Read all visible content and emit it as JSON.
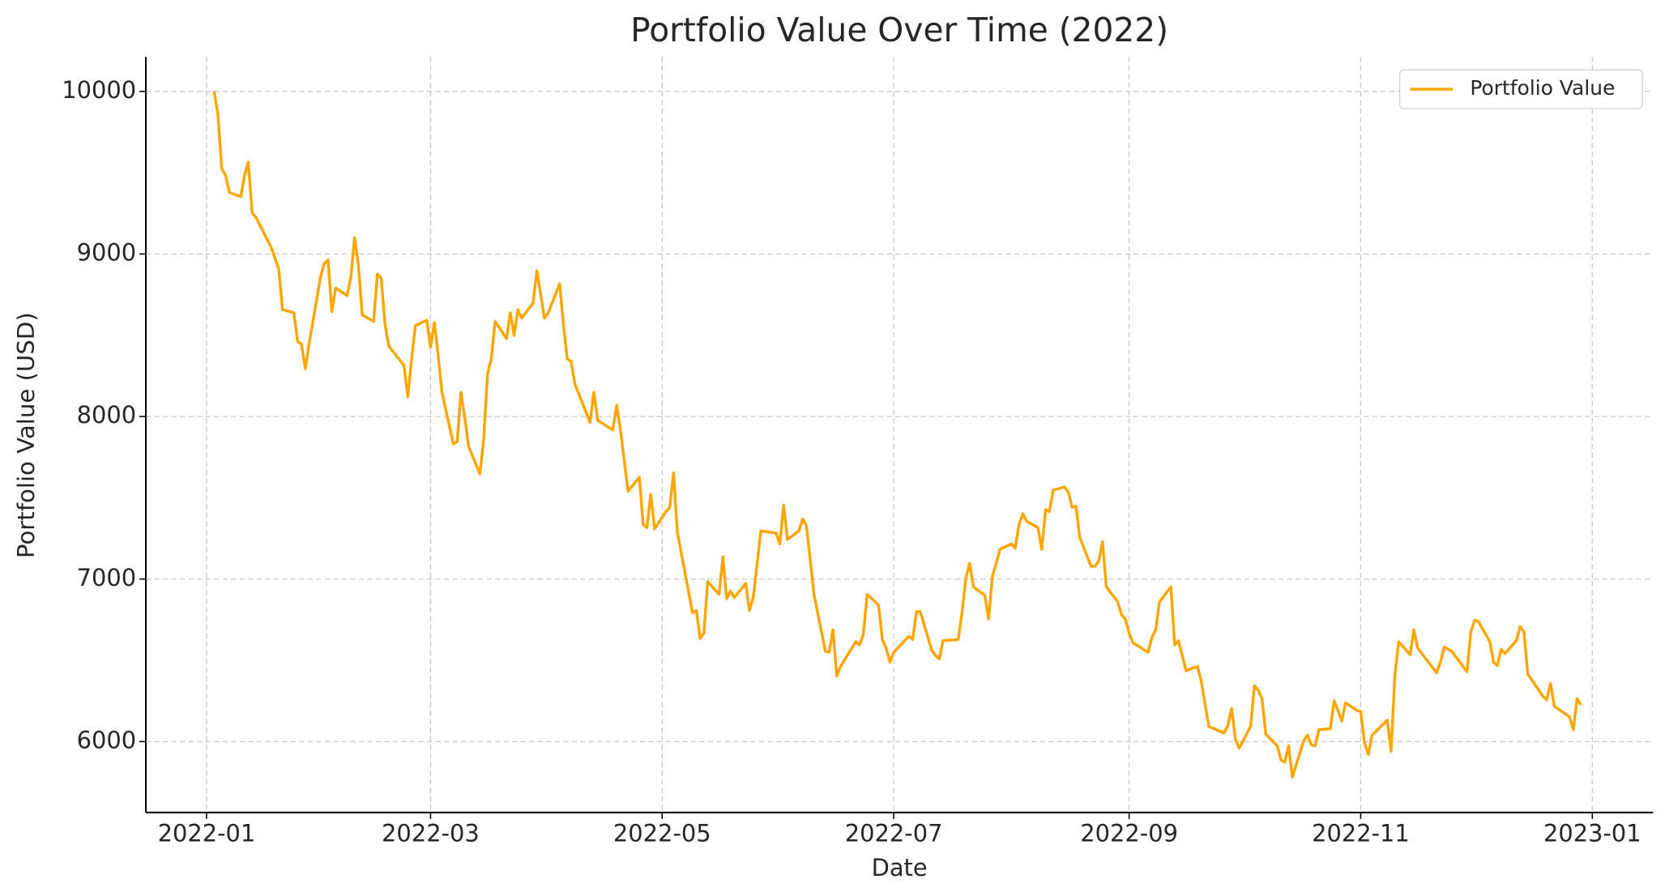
{
  "chart_data": {
    "type": "line",
    "title": "Portfolio Value Over Time (2022)",
    "xlabel": "Date",
    "ylabel": "Portfolio Value (USD)",
    "x": [
      "2022-01-03",
      "2022-01-04",
      "2022-01-05",
      "2022-01-06",
      "2022-01-07",
      "2022-01-10",
      "2022-01-11",
      "2022-01-12",
      "2022-01-13",
      "2022-01-14",
      "2022-01-18",
      "2022-01-20",
      "2022-01-21",
      "2022-01-24",
      "2022-01-25",
      "2022-01-26",
      "2022-01-27",
      "2022-01-28",
      "2022-01-31",
      "2022-02-01",
      "2022-02-02",
      "2022-02-03",
      "2022-02-04",
      "2022-02-07",
      "2022-02-08",
      "2022-02-09",
      "2022-02-10",
      "2022-02-11",
      "2022-02-14",
      "2022-02-15",
      "2022-02-16",
      "2022-02-17",
      "2022-02-18",
      "2022-02-22",
      "2022-02-23",
      "2022-02-24",
      "2022-02-25",
      "2022-02-28",
      "2022-03-01",
      "2022-03-02",
      "2022-03-03",
      "2022-03-04",
      "2022-03-07",
      "2022-03-08",
      "2022-03-09",
      "2022-03-10",
      "2022-03-11",
      "2022-03-14",
      "2022-03-15",
      "2022-03-16",
      "2022-03-17",
      "2022-03-18",
      "2022-03-21",
      "2022-03-22",
      "2022-03-23",
      "2022-03-24",
      "2022-03-25",
      "2022-03-28",
      "2022-03-29",
      "2022-03-30",
      "2022-03-31",
      "2022-04-01",
      "2022-04-04",
      "2022-04-05",
      "2022-04-06",
      "2022-04-07",
      "2022-04-08",
      "2022-04-12",
      "2022-04-13",
      "2022-04-14",
      "2022-04-18",
      "2022-04-19",
      "2022-04-20",
      "2022-04-22",
      "2022-04-25",
      "2022-04-26",
      "2022-04-27",
      "2022-04-28",
      "2022-04-29",
      "2022-05-02",
      "2022-05-03",
      "2022-05-04",
      "2022-05-05",
      "2022-05-09",
      "2022-05-10",
      "2022-05-11",
      "2022-05-12",
      "2022-05-13",
      "2022-05-16",
      "2022-05-17",
      "2022-05-18",
      "2022-05-19",
      "2022-05-20",
      "2022-05-23",
      "2022-05-24",
      "2022-05-25",
      "2022-05-27",
      "2022-05-31",
      "2022-06-01",
      "2022-06-02",
      "2022-06-03",
      "2022-06-06",
      "2022-06-07",
      "2022-06-08",
      "2022-06-10",
      "2022-06-13",
      "2022-06-14",
      "2022-06-15",
      "2022-06-16",
      "2022-06-17",
      "2022-06-21",
      "2022-06-22",
      "2022-06-23",
      "2022-06-24",
      "2022-06-27",
      "2022-06-28",
      "2022-06-29",
      "2022-06-30",
      "2022-07-01",
      "2022-07-05",
      "2022-07-06",
      "2022-07-07",
      "2022-07-08",
      "2022-07-11",
      "2022-07-12",
      "2022-07-13",
      "2022-07-14",
      "2022-07-18",
      "2022-07-19",
      "2022-07-20",
      "2022-07-21",
      "2022-07-22",
      "2022-07-25",
      "2022-07-26",
      "2022-07-27",
      "2022-07-28",
      "2022-07-29",
      "2022-08-01",
      "2022-08-02",
      "2022-08-03",
      "2022-08-04",
      "2022-08-05",
      "2022-08-08",
      "2022-08-09",
      "2022-08-10",
      "2022-08-11",
      "2022-08-12",
      "2022-08-15",
      "2022-08-16",
      "2022-08-17",
      "2022-08-18",
      "2022-08-19",
      "2022-08-22",
      "2022-08-23",
      "2022-08-24",
      "2022-08-25",
      "2022-08-26",
      "2022-08-29",
      "2022-08-30",
      "2022-08-31",
      "2022-09-01",
      "2022-09-02",
      "2022-09-06",
      "2022-09-07",
      "2022-09-08",
      "2022-09-09",
      "2022-09-12",
      "2022-09-13",
      "2022-09-14",
      "2022-09-15",
      "2022-09-16",
      "2022-09-19",
      "2022-09-20",
      "2022-09-22",
      "2022-09-26",
      "2022-09-27",
      "2022-09-28",
      "2022-09-29",
      "2022-09-30",
      "2022-10-03",
      "2022-10-04",
      "2022-10-05",
      "2022-10-06",
      "2022-10-07",
      "2022-10-10",
      "2022-10-11",
      "2022-10-12",
      "2022-10-13",
      "2022-10-14",
      "2022-10-17",
      "2022-10-18",
      "2022-10-19",
      "2022-10-20",
      "2022-10-21",
      "2022-10-24",
      "2022-10-25",
      "2022-10-26",
      "2022-10-27",
      "2022-10-28",
      "2022-10-31",
      "2022-11-01",
      "2022-11-02",
      "2022-11-03",
      "2022-11-04",
      "2022-11-08",
      "2022-11-09",
      "2022-11-10",
      "2022-11-11",
      "2022-11-14",
      "2022-11-15",
      "2022-11-16",
      "2022-11-21",
      "2022-11-22",
      "2022-11-23",
      "2022-11-25",
      "2022-11-29",
      "2022-11-30",
      "2022-12-01",
      "2022-12-02",
      "2022-12-05",
      "2022-12-06",
      "2022-12-07",
      "2022-12-08",
      "2022-12-09",
      "2022-12-12",
      "2022-12-13",
      "2022-12-14",
      "2022-12-15",
      "2022-12-19",
      "2022-12-20",
      "2022-12-21",
      "2022-12-22",
      "2022-12-26",
      "2022-12-27",
      "2022-12-28",
      "2022-12-29"
    ],
    "series": [
      {
        "name": "Portfolio Value",
        "color": "#ffa500",
        "values": [
          10000,
          9855,
          9524,
          9484,
          9379,
          9352,
          9484,
          9564,
          9253,
          9226,
          9041,
          8909,
          8658,
          8638,
          8460,
          8446,
          8294,
          8446,
          8856,
          8942,
          8962,
          8645,
          8790,
          8744,
          8856,
          9101,
          8929,
          8625,
          8585,
          8876,
          8850,
          8565,
          8433,
          8314,
          8122,
          8354,
          8559,
          8592,
          8426,
          8579,
          8374,
          8149,
          7831,
          7845,
          8149,
          7997,
          7818,
          7646,
          7864,
          8261,
          8354,
          8585,
          8479,
          8638,
          8499,
          8658,
          8605,
          8698,
          8896,
          8750,
          8605,
          8638,
          8817,
          8565,
          8354,
          8340,
          8202,
          7964,
          8149,
          7977,
          7917,
          8069,
          7924,
          7540,
          7626,
          7336,
          7316,
          7521,
          7309,
          7415,
          7441,
          7653,
          7289,
          6793,
          6807,
          6635,
          6668,
          6985,
          6906,
          7137,
          6879,
          6926,
          6886,
          6972,
          6807,
          6886,
          7296,
          7283,
          7216,
          7455,
          7243,
          7296,
          7369,
          7329,
          6906,
          6555,
          6549,
          6688,
          6403,
          6463,
          6615,
          6595,
          6661,
          6906,
          6840,
          6628,
          6575,
          6489,
          6549,
          6648,
          6628,
          6800,
          6800,
          6562,
          6529,
          6509,
          6621,
          6628,
          6800,
          7005,
          7097,
          6952,
          6899,
          6754,
          7018,
          7097,
          7183,
          7216,
          7190,
          7336,
          7402,
          7355,
          7316,
          7183,
          7428,
          7415,
          7547,
          7567,
          7534,
          7441,
          7448,
          7256,
          7078,
          7078,
          7111,
          7230,
          6952,
          6860,
          6780,
          6754,
          6668,
          6608,
          6549,
          6641,
          6688,
          6860,
          6952,
          6595,
          6621,
          6529,
          6436,
          6463,
          6370,
          6093,
          6053,
          6099,
          6205,
          6013,
          5960,
          6093,
          6344,
          6317,
          6264,
          6046,
          5974,
          5888,
          5874,
          5974,
          5782,
          6007,
          6040,
          5980,
          5974,
          6073,
          6079,
          6251,
          6192,
          6126,
          6238,
          6192,
          6185,
          5993,
          5921,
          6040,
          6132,
          5941,
          6410,
          6615,
          6535,
          6688,
          6575,
          6423,
          6489,
          6582,
          6555,
          6430,
          6674,
          6747,
          6740,
          6615,
          6489,
          6469,
          6568,
          6542,
          6621,
          6707,
          6674,
          6416,
          6278,
          6258,
          6357,
          6218,
          6152,
          6073,
          6264,
          6225
        ]
      }
    ],
    "xlim": [
      "2021-12-16",
      "2023-01-17"
    ],
    "xticks": [
      {
        "value": "2022-01-01",
        "label": "2022-01"
      },
      {
        "value": "2022-03-01",
        "label": "2022-03"
      },
      {
        "value": "2022-05-01",
        "label": "2022-05"
      },
      {
        "value": "2022-07-01",
        "label": "2022-07"
      },
      {
        "value": "2022-09-01",
        "label": "2022-09"
      },
      {
        "value": "2022-11-01",
        "label": "2022-11"
      },
      {
        "value": "2023-01-01",
        "label": "2023-01"
      }
    ],
    "ylim": [
      5564,
      10212
    ],
    "yticks": [
      6000,
      7000,
      8000,
      9000,
      10000
    ],
    "grid": true,
    "legend": "upper right"
  }
}
